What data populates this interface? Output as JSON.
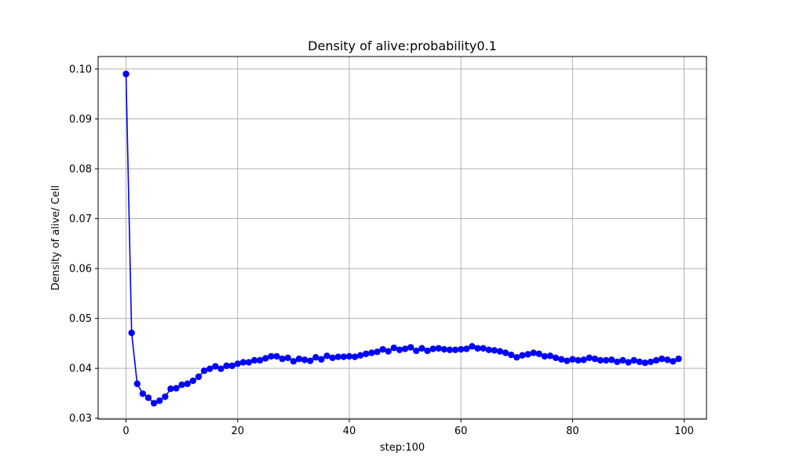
{
  "chart_data": {
    "type": "line",
    "title": "Density of alive:probability0.1",
    "xlabel": "step:100",
    "ylabel": "Density of alive/ Cell",
    "xlim": [
      -5,
      104
    ],
    "ylim": [
      0.0298,
      0.1025
    ],
    "xticks": [
      0,
      20,
      40,
      60,
      80,
      100
    ],
    "xtick_labels": [
      "0",
      "20",
      "40",
      "60",
      "80",
      "100"
    ],
    "yticks": [
      0.03,
      0.04,
      0.05,
      0.06,
      0.07,
      0.08,
      0.09,
      0.1
    ],
    "ytick_labels": [
      "0.03",
      "0.04",
      "0.05",
      "0.06",
      "0.07",
      "0.08",
      "0.09",
      "0.10"
    ],
    "grid": true,
    "series_color": "#0000ff",
    "marker": "circle",
    "x": [
      0,
      1,
      2,
      3,
      4,
      5,
      6,
      7,
      8,
      9,
      10,
      11,
      12,
      13,
      14,
      15,
      16,
      17,
      18,
      19,
      20,
      21,
      22,
      23,
      24,
      25,
      26,
      27,
      28,
      29,
      30,
      31,
      32,
      33,
      34,
      35,
      36,
      37,
      38,
      39,
      40,
      41,
      42,
      43,
      44,
      45,
      46,
      47,
      48,
      49,
      50,
      51,
      52,
      53,
      54,
      55,
      56,
      57,
      58,
      59,
      60,
      61,
      62,
      63,
      64,
      65,
      66,
      67,
      68,
      69,
      70,
      71,
      72,
      73,
      74,
      75,
      76,
      77,
      78,
      79,
      80,
      81,
      82,
      83,
      84,
      85,
      86,
      87,
      88,
      89,
      90,
      91,
      92,
      93,
      94,
      95,
      96,
      97,
      98,
      99
    ],
    "y": [
      0.099,
      0.0471,
      0.0369,
      0.0349,
      0.0341,
      0.033,
      0.0335,
      0.0343,
      0.0359,
      0.036,
      0.0367,
      0.0369,
      0.0375,
      0.0383,
      0.0395,
      0.0399,
      0.0404,
      0.0399,
      0.0405,
      0.0405,
      0.0409,
      0.0412,
      0.0412,
      0.0416,
      0.0416,
      0.042,
      0.0424,
      0.0424,
      0.0419,
      0.0421,
      0.0414,
      0.0419,
      0.0417,
      0.0415,
      0.0422,
      0.0418,
      0.0425,
      0.0421,
      0.0423,
      0.0423,
      0.0424,
      0.0423,
      0.0426,
      0.0429,
      0.0431,
      0.0433,
      0.0438,
      0.0434,
      0.0441,
      0.0437,
      0.0439,
      0.0442,
      0.0435,
      0.044,
      0.0435,
      0.0439,
      0.044,
      0.0438,
      0.0437,
      0.0437,
      0.0438,
      0.0439,
      0.0444,
      0.044,
      0.044,
      0.0437,
      0.0436,
      0.0434,
      0.0431,
      0.0427,
      0.0422,
      0.0426,
      0.0428,
      0.0431,
      0.0429,
      0.0424,
      0.0425,
      0.0421,
      0.0418,
      0.0415,
      0.0418,
      0.0416,
      0.0417,
      0.0421,
      0.0419,
      0.0416,
      0.0416,
      0.0417,
      0.0413,
      0.0416,
      0.0412,
      0.0416,
      0.0413,
      0.0411,
      0.0413,
      0.0416,
      0.0419,
      0.0417,
      0.0414,
      0.0419
    ]
  }
}
